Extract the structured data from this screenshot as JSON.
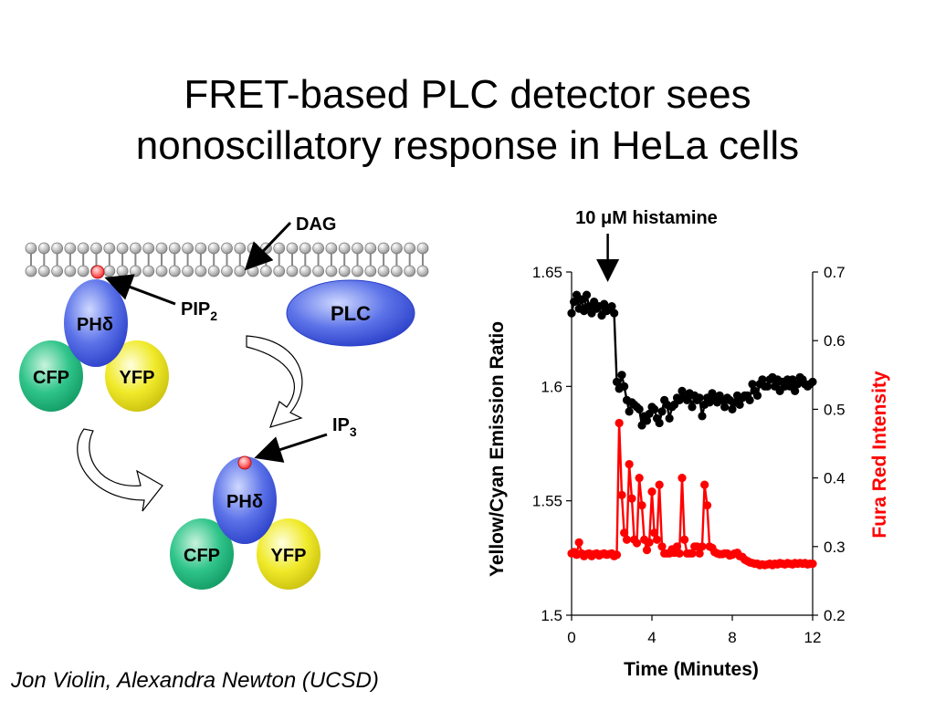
{
  "slide": {
    "title_line1": "FRET-based PLC detector sees",
    "title_line2": "nonoscillatory response in HeLa cells",
    "credit": "Jon Violin, Alexandra Newton (UCSD)"
  },
  "diagram": {
    "dag_label": "DAG",
    "pip2_label": "PIP",
    "pip2_sub": "2",
    "plc_label": "PLC",
    "ip3_label": "IP",
    "ip3_sub": "3",
    "ph_label": "PHδ",
    "cfp_label": "CFP",
    "yfp_label": "YFP",
    "colors": {
      "ph": "#3b5bdb",
      "cfp": "#1fb37a",
      "yfp": "#e3dd1a",
      "plc": "#3b5bdb",
      "headgroup": "#ff6b6b"
    }
  },
  "chart_data": {
    "type": "line",
    "annotation": "10 μM histamine",
    "annotation_x": 1.8,
    "xlabel": "Time (Minutes)",
    "ylabel_left": "Yellow/Cyan Emission Ratio",
    "ylabel_right": "Fura Red Intensity",
    "xlim": [
      0,
      12
    ],
    "ylim_left": [
      1.5,
      1.65
    ],
    "ylim_right": [
      0.2,
      0.7
    ],
    "x_ticks": [
      "0",
      "4",
      "8",
      "12"
    ],
    "y_ticks_left": [
      "1.5",
      "1.55",
      "1.6",
      "1.65"
    ],
    "y_ticks_right": [
      "0.2",
      "0.3",
      "0.4",
      "0.5",
      "0.6",
      "0.7"
    ],
    "series": [
      {
        "axis": "left",
        "color": "#000000",
        "x": [
          0,
          0.12,
          0.25,
          0.37,
          0.5,
          0.62,
          0.75,
          0.87,
          1.0,
          1.12,
          1.25,
          1.37,
          1.5,
          1.62,
          1.75,
          1.87,
          2.0,
          2.12,
          2.25,
          2.37,
          2.5,
          2.62,
          2.75,
          2.87,
          3.0,
          3.12,
          3.25,
          3.37,
          3.5,
          3.62,
          3.75,
          3.87,
          4.0,
          4.12,
          4.25,
          4.37,
          4.5,
          4.62,
          4.75,
          4.87,
          5.0,
          5.12,
          5.25,
          5.37,
          5.5,
          5.62,
          5.75,
          5.87,
          6.0,
          6.12,
          6.25,
          6.37,
          6.5,
          6.62,
          6.75,
          6.87,
          7.0,
          7.12,
          7.25,
          7.37,
          7.5,
          7.62,
          7.75,
          7.87,
          8.0,
          8.12,
          8.25,
          8.37,
          8.5,
          8.62,
          8.75,
          8.87,
          9.0,
          9.12,
          9.25,
          9.37,
          9.5,
          9.62,
          9.75,
          9.87,
          10.0,
          10.12,
          10.25,
          10.37,
          10.5,
          10.62,
          10.75,
          10.87,
          11.0,
          11.12,
          11.25,
          11.37,
          11.5,
          11.62,
          11.75,
          11.87,
          12.0
        ],
        "values": [
          1.632,
          1.637,
          1.64,
          1.634,
          1.638,
          1.633,
          1.64,
          1.635,
          1.632,
          1.637,
          1.634,
          1.635,
          1.631,
          1.636,
          1.633,
          1.634,
          1.635,
          1.632,
          1.602,
          1.599,
          1.605,
          1.6,
          1.594,
          1.589,
          1.593,
          1.592,
          1.591,
          1.59,
          1.583,
          1.587,
          1.585,
          1.588,
          1.591,
          1.59,
          1.586,
          1.584,
          1.589,
          1.594,
          1.592,
          1.586,
          1.591,
          1.592,
          1.595,
          1.594,
          1.598,
          1.595,
          1.594,
          1.597,
          1.591,
          1.596,
          1.594,
          1.595,
          1.587,
          1.592,
          1.595,
          1.593,
          1.597,
          1.594,
          1.593,
          1.596,
          1.594,
          1.591,
          1.595,
          1.594,
          1.59,
          1.593,
          1.596,
          1.592,
          1.595,
          1.596,
          1.596,
          1.594,
          1.601,
          1.598,
          1.596,
          1.601,
          1.603,
          1.6,
          1.6,
          1.603,
          1.604,
          1.6,
          1.603,
          1.598,
          1.602,
          1.6,
          1.603,
          1.6,
          1.603,
          1.598,
          1.601,
          1.604,
          1.603,
          1.601,
          1.6,
          1.601,
          1.602
        ]
      },
      {
        "axis": "right",
        "color": "#ff0000",
        "x": [
          0,
          0.12,
          0.25,
          0.37,
          0.5,
          0.62,
          0.75,
          0.87,
          1.0,
          1.12,
          1.25,
          1.37,
          1.5,
          1.62,
          1.75,
          1.87,
          2.0,
          2.12,
          2.25,
          2.37,
          2.5,
          2.62,
          2.75,
          2.87,
          3.0,
          3.12,
          3.25,
          3.37,
          3.5,
          3.62,
          3.75,
          3.87,
          4.0,
          4.12,
          4.25,
          4.37,
          4.5,
          4.62,
          4.75,
          4.87,
          5.0,
          5.12,
          5.25,
          5.37,
          5.5,
          5.62,
          5.75,
          5.87,
          6.0,
          6.12,
          6.25,
          6.37,
          6.5,
          6.62,
          6.75,
          6.87,
          7.0,
          7.12,
          7.25,
          7.37,
          7.5,
          7.62,
          7.75,
          7.87,
          8.0,
          8.12,
          8.25,
          8.37,
          8.5,
          8.62,
          8.75,
          8.87,
          9.0,
          9.12,
          9.25,
          9.37,
          9.5,
          9.62,
          9.75,
          9.87,
          10.0,
          10.12,
          10.25,
          10.37,
          10.5,
          10.62,
          10.75,
          10.87,
          11.0,
          11.12,
          11.25,
          11.37,
          11.5,
          11.62,
          11.75,
          11.87,
          12.0
        ],
        "values": [
          0.29,
          0.292,
          0.288,
          0.306,
          0.29,
          0.286,
          0.289,
          0.29,
          0.286,
          0.289,
          0.29,
          0.287,
          0.289,
          0.29,
          0.288,
          0.289,
          0.29,
          0.286,
          0.288,
          0.48,
          0.375,
          0.32,
          0.31,
          0.42,
          0.37,
          0.31,
          0.305,
          0.4,
          0.36,
          0.31,
          0.295,
          0.306,
          0.38,
          0.32,
          0.31,
          0.39,
          0.3,
          0.29,
          0.29,
          0.29,
          0.296,
          0.291,
          0.3,
          0.29,
          0.4,
          0.31,
          0.29,
          0.29,
          0.29,
          0.3,
          0.3,
          0.29,
          0.3,
          0.39,
          0.36,
          0.3,
          0.298,
          0.292,
          0.29,
          0.289,
          0.289,
          0.29,
          0.29,
          0.287,
          0.288,
          0.29,
          0.291,
          0.286,
          0.285,
          0.281,
          0.279,
          0.277,
          0.276,
          0.275,
          0.275,
          0.273,
          0.274,
          0.273,
          0.274,
          0.275,
          0.273,
          0.275,
          0.274,
          0.276,
          0.275,
          0.274,
          0.276,
          0.275,
          0.274,
          0.276,
          0.275,
          0.276,
          0.275,
          0.276,
          0.274,
          0.275,
          0.275
        ]
      }
    ]
  }
}
